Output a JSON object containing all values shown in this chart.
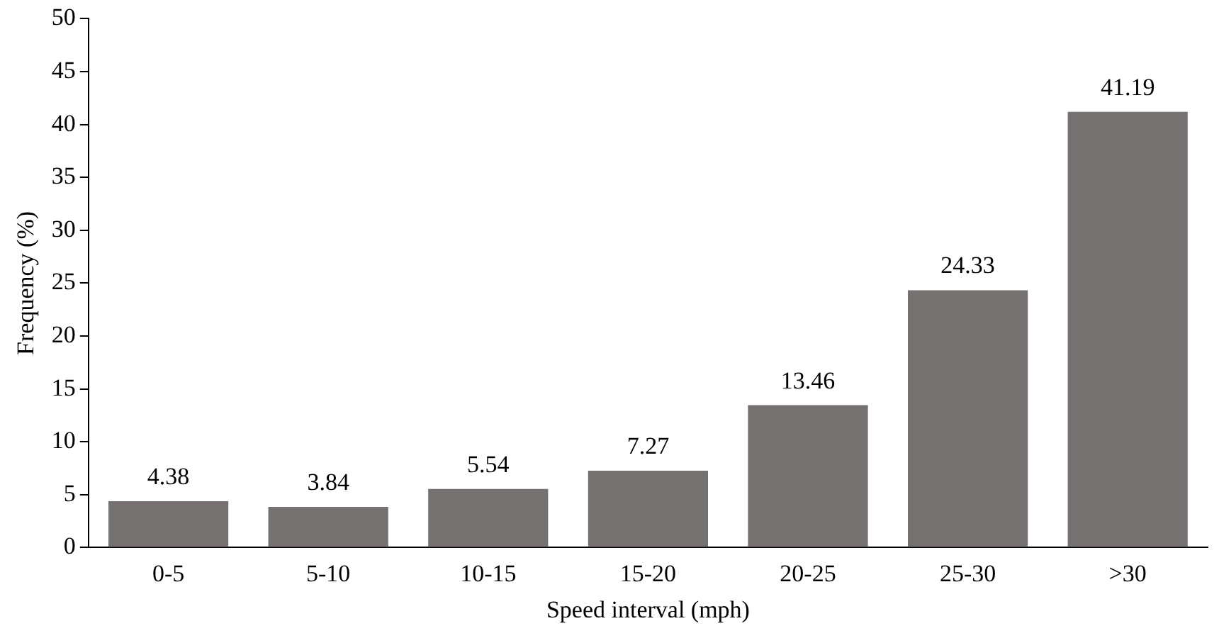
{
  "chart_data": {
    "type": "bar",
    "xlabel": "Speed interval (mph)",
    "ylabel": "Frequency (%)",
    "categories": [
      "0-5",
      "5-10",
      "10-15",
      "15-20",
      "20-25",
      "25-30",
      ">30"
    ],
    "values": [
      4.38,
      3.84,
      5.54,
      7.27,
      13.46,
      24.33,
      41.19
    ],
    "color": "#767171",
    "ylim": [
      0,
      50
    ],
    "yticks": [
      0,
      5,
      10,
      15,
      20,
      25,
      30,
      35,
      40,
      45,
      50
    ],
    "grid": false,
    "legend": false,
    "data_labels": true
  }
}
